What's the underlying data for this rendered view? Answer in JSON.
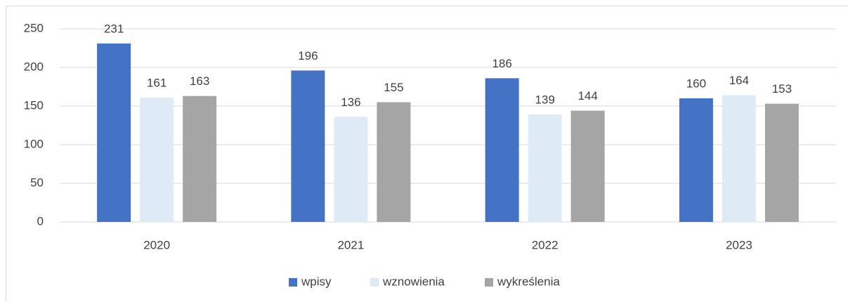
{
  "chart_data": {
    "type": "bar",
    "categories": [
      "2020",
      "2021",
      "2022",
      "2023"
    ],
    "series": [
      {
        "name": "wpisy",
        "color": "#4472c4",
        "values": [
          231,
          196,
          186,
          160
        ]
      },
      {
        "name": "wznowienia",
        "color": "#deebf7",
        "values": [
          161,
          136,
          139,
          164
        ]
      },
      {
        "name": "wykreślenia",
        "color": "#a5a5a5",
        "values": [
          163,
          155,
          144,
          153
        ]
      }
    ],
    "ylim": [
      0,
      250
    ],
    "yticks": [
      0,
      50,
      100,
      150,
      200,
      250
    ],
    "grid": true,
    "legend": "bottom"
  }
}
